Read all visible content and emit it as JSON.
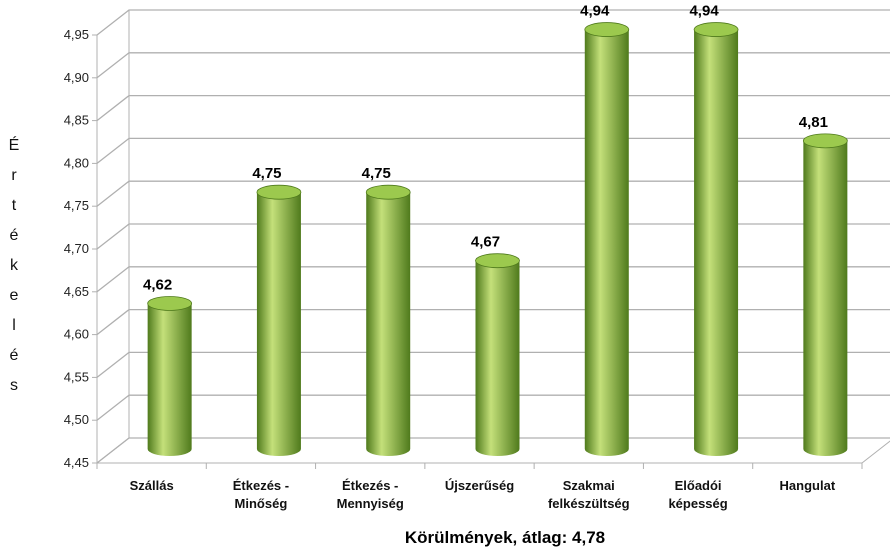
{
  "chart_data": {
    "type": "bar",
    "style": "3d-cylinder",
    "title": "",
    "xlabel": "Körülmények, átlag: 4,78",
    "ylabel": "Értékelés",
    "ylim": [
      4.45,
      4.95
    ],
    "ytick_step": 0.05,
    "yticks": [
      "4,45",
      "4,50",
      "4,55",
      "4,60",
      "4,65",
      "4,70",
      "4,75",
      "4,80",
      "4,85",
      "4,90",
      "4,95"
    ],
    "grid": true,
    "legend": "none",
    "categories": [
      [
        "Szállás"
      ],
      [
        "Étkezés -",
        "Minőség"
      ],
      [
        "Étkezés -",
        "Mennyiség"
      ],
      [
        "Újszerűség"
      ],
      [
        "Szakmai",
        "felkészültség"
      ],
      [
        "Előadói",
        "képesség"
      ],
      [
        "Hangulat"
      ]
    ],
    "values": [
      4.62,
      4.75,
      4.75,
      4.67,
      4.94,
      4.94,
      4.81
    ],
    "data_labels": [
      "4,62",
      "4,75",
      "4,75",
      "4,67",
      "4,94",
      "4,94",
      "4,81"
    ],
    "colors": {
      "bar": "#7fb03a",
      "bar_light": "#c4e07a",
      "bar_dark": "#4f7a1c",
      "bar_top": "#9cc94e",
      "grid": "#b0b0b0",
      "wall": "#ffffff"
    }
  }
}
